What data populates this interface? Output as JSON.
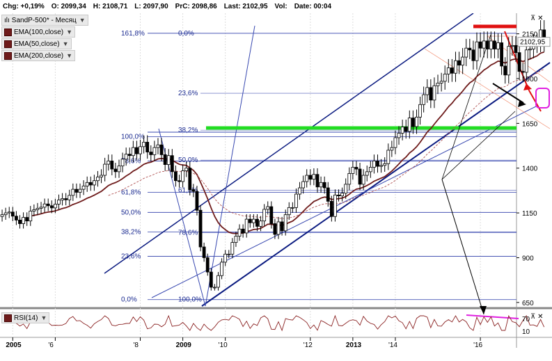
{
  "header": {
    "chg": "Chg: +0,19%",
    "o": "O: 2099,34",
    "h": "H: 2108,71",
    "l": "L: 2097,90",
    "prc": "PrC: 2098,86",
    "last": "Last: 2102,95",
    "vol": "Vol:",
    "date": "Date: 00:04"
  },
  "legend": {
    "symbol": "SandP-500* - Месяц",
    "ema100": "EMA(100,close)",
    "ema50": "EMA(50,close)",
    "ema200": "EMA(200,close)",
    "rsi": "RSI(14)"
  },
  "window_buttons": "⊼ ✕",
  "chart_data": {
    "type": "candlestick",
    "last_price_label": "2102,95",
    "price_axis_ticks": [
      "2150",
      "1900",
      "1650",
      "1400",
      "1150",
      "900",
      "650"
    ],
    "price_axis_values": [
      2150,
      1900,
      1650,
      1400,
      1150,
      900,
      650
    ],
    "ylim": [
      630,
      2230
    ],
    "rsi_axis_ticks": [
      "70",
      "10"
    ],
    "x_labels": [
      "2005",
      "'6",
      "'8",
      "2009",
      "'10",
      "'12",
      "2013",
      "'14",
      "'16"
    ],
    "x_label_years": [
      2005,
      2006,
      2008,
      2009,
      2010,
      2012,
      2013,
      2014,
      2016
    ],
    "xlim": [
      2004.7,
      2016.85
    ],
    "fib_left": {
      "labels": [
        "161,8%",
        "100,0%",
        "78,6%",
        "61,8%",
        "50,0%",
        "38,2%",
        "23,6%",
        "0,0%"
      ],
      "prices": [
        2153,
        1576,
        1440,
        1265,
        1153,
        1044,
        908,
        666
      ]
    },
    "fib_middle": {
      "labels": [
        "0,0%",
        "23,6%",
        "38,2%",
        "50,0%",
        "61,8%",
        "78,6%",
        "100,0%"
      ],
      "prices": [
        2153,
        1818,
        1612,
        1445,
        1277,
        1040,
        666
      ]
    },
    "monthly_closes": [
      1140,
      1150,
      1155,
      1132,
      1110,
      1090,
      1125,
      1105,
      1160,
      1168,
      1176,
      1182,
      1200,
      1190,
      1178,
      1199,
      1222,
      1230,
      1223,
      1248,
      1282,
      1265,
      1282,
      1300,
      1320,
      1306,
      1330,
      1350,
      1360,
      1422,
      1440,
      1395,
      1380,
      1412,
      1450,
      1478,
      1470,
      1515,
      1480,
      1520,
      1545,
      1490,
      1475,
      1515,
      1530,
      1475,
      1420,
      1470,
      1380,
      1330,
      1325,
      1385,
      1400,
      1280,
      1270,
      1165,
      960,
      900,
      820,
      735,
      735,
      800,
      875,
      920,
      920,
      985,
      1020,
      1060,
      1038,
      1115,
      1095,
      1115,
      1075,
      1105,
      1170,
      1185,
      1090,
      1030,
      1100,
      1050,
      1140,
      1180,
      1180,
      1255,
      1290,
      1325,
      1360,
      1338,
      1365,
      1295,
      1320,
      1290,
      1215,
      1130,
      1250,
      1245,
      1260,
      1310,
      1370,
      1405,
      1395,
      1310,
      1360,
      1380,
      1405,
      1440,
      1410,
      1415,
      1425,
      1500,
      1515,
      1570,
      1595,
      1630,
      1605,
      1680,
      1632,
      1685,
      1755,
      1810,
      1850,
      1780,
      1860,
      1875,
      1885,
      1925,
      1960,
      1930,
      2000,
      1975,
      2020,
      2070,
      2060,
      2000,
      2105,
      2070,
      2110,
      2065,
      2110,
      2065,
      2100,
      1970,
      1920,
      2080,
      2085,
      2045,
      1940,
      1935,
      2060,
      2065,
      2095,
      2100,
      2172,
      2102
    ]
  }
}
